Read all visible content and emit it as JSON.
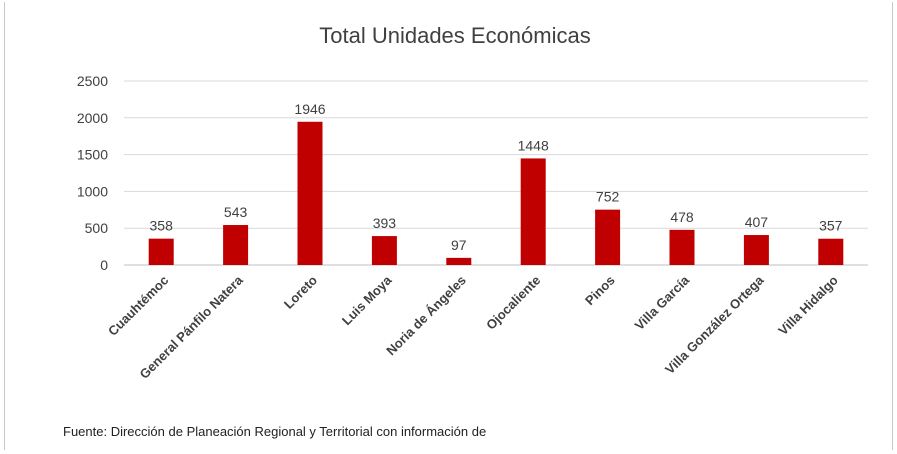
{
  "chart_data": {
    "type": "bar",
    "title": "Total Unidades Económicas",
    "xlabel": "",
    "ylabel": "",
    "categories": [
      "Cuauhtémoc",
      "General Pánfilo Natera",
      "Loreto",
      "Luis Moya",
      "Noria de Ángeles",
      "Ojocaliente",
      "Pinos",
      "Villa García",
      "Villa González Ortega",
      "Villa Hidalgo"
    ],
    "values": [
      358,
      543,
      1946,
      393,
      97,
      1448,
      752,
      478,
      407,
      357
    ],
    "ylim": [
      0,
      2500
    ],
    "yticks": [
      0,
      500,
      1000,
      1500,
      2000,
      2500
    ],
    "grid": true,
    "legend": "none",
    "bar_color": "#c00000",
    "data_labels": true
  },
  "source_note": "Fuente: Dirección de Planeación Regional y Territorial con información de"
}
